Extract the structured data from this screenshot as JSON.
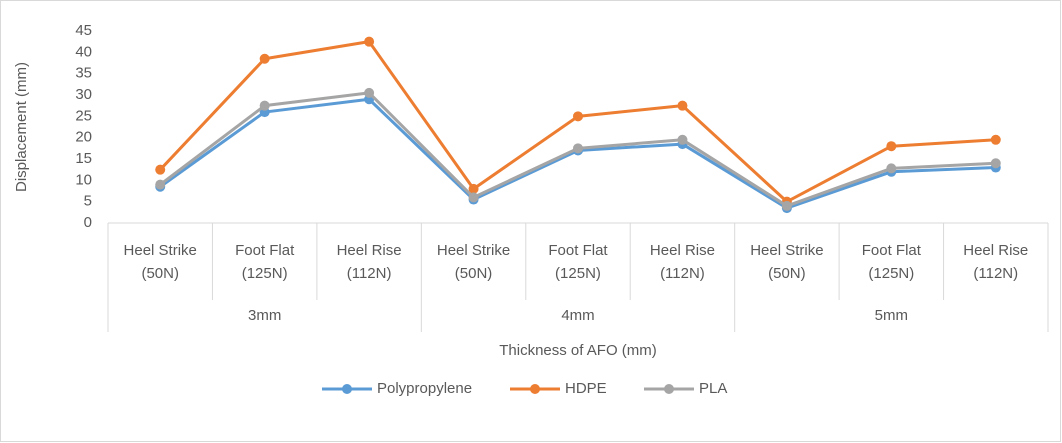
{
  "chart_data": {
    "type": "line",
    "categories": [
      "Heel Strike (50N)",
      "Foot Flat (125N)",
      "Heel Rise (112N)",
      "Heel Strike (50N)",
      "Foot Flat (125N)",
      "Heel Rise (112N)",
      "Heel Strike (50N)",
      "Foot Flat (125N)",
      "Heel Rise (112N)"
    ],
    "groups": [
      "3mm",
      "4mm",
      "5mm"
    ],
    "series": [
      {
        "name": "Polypropylene",
        "color": "#5b9bd5",
        "values": [
          8.5,
          26,
          29,
          5.5,
          17,
          18.5,
          3.5,
          12,
          13
        ]
      },
      {
        "name": "HDPE",
        "color": "#ed7d31",
        "values": [
          12.5,
          38.5,
          42.5,
          8,
          25,
          27.5,
          5,
          18,
          19.5
        ]
      },
      {
        "name": "PLA",
        "color": "#a5a5a5",
        "values": [
          9,
          27.5,
          30.5,
          6,
          17.5,
          19.5,
          4,
          12.8,
          14
        ]
      }
    ],
    "ylabel": "Displacement (mm)",
    "xlabel": "Thickness of AFO (mm)",
    "ylim": [
      0,
      45
    ],
    "yticks": [
      0,
      5,
      10,
      15,
      20,
      25,
      30,
      35,
      40,
      45
    ],
    "grid": false,
    "legend": "bottom"
  }
}
